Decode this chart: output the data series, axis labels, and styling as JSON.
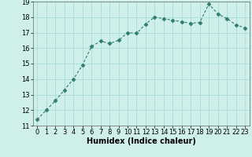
{
  "x": [
    0,
    1,
    2,
    3,
    4,
    5,
    6,
    7,
    8,
    9,
    10,
    11,
    12,
    13,
    14,
    15,
    16,
    17,
    18,
    19,
    20,
    21,
    22,
    23
  ],
  "y": [
    11.4,
    12.0,
    12.6,
    13.3,
    14.0,
    14.9,
    16.1,
    16.45,
    16.3,
    16.5,
    17.0,
    16.95,
    17.55,
    18.0,
    17.9,
    17.8,
    17.7,
    17.6,
    17.65,
    18.85,
    18.2,
    17.9,
    17.5,
    17.3
  ],
  "line_color": "#2e7d6e",
  "marker": "D",
  "marker_size": 2.5,
  "bg_color": "#cff0ea",
  "grid_color": "#a8ddd6",
  "xlabel": "Humidex (Indice chaleur)",
  "xlim": [
    -0.5,
    23.5
  ],
  "ylim": [
    11,
    19
  ],
  "yticks": [
    11,
    12,
    13,
    14,
    15,
    16,
    17,
    18,
    19
  ],
  "xticks": [
    0,
    1,
    2,
    3,
    4,
    5,
    6,
    7,
    8,
    9,
    10,
    11,
    12,
    13,
    14,
    15,
    16,
    17,
    18,
    19,
    20,
    21,
    22,
    23
  ],
  "xlabel_fontsize": 7,
  "tick_fontsize": 6
}
